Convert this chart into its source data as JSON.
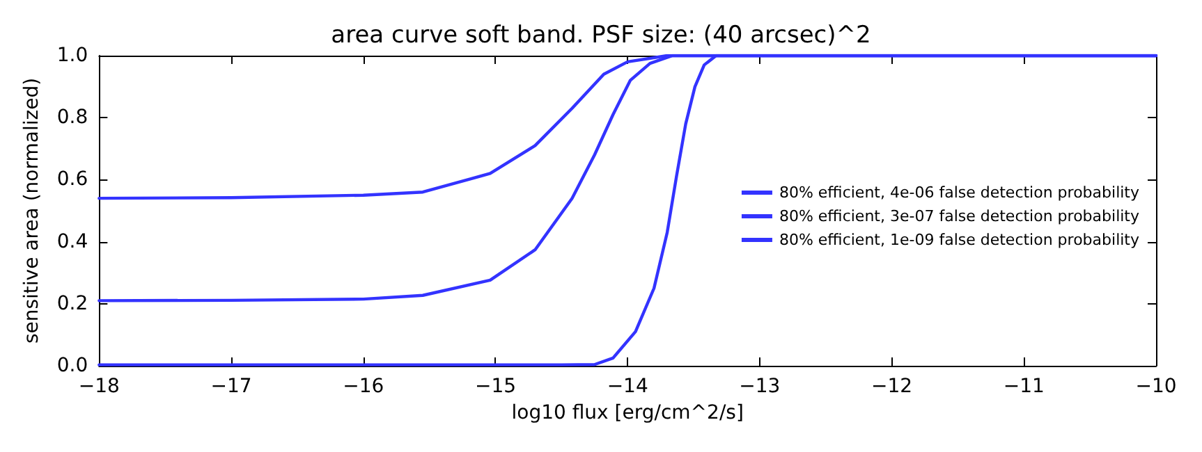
{
  "chart_data": {
    "type": "line",
    "title": "area curve soft band. PSF size: (40 arcsec)^2",
    "xlabel": "log10 flux [erg/cm^2/s]",
    "ylabel": "sensitive area (normalized)",
    "xlim": [
      -18,
      -10
    ],
    "xticks": [
      -18,
      -17,
      -16,
      -15,
      -14,
      -13,
      -12,
      -11,
      -10
    ],
    "ylim": [
      0,
      1
    ],
    "yticks": [
      {
        "value": 0,
        "label": "0.0"
      },
      {
        "value": 0.2,
        "label": "0.2"
      },
      {
        "value": 0.4,
        "label": "0.4"
      },
      {
        "value": 0.6,
        "label": "0.6"
      },
      {
        "value": 0.8,
        "label": "0.8"
      },
      {
        "value": 1,
        "label": "1.0"
      }
    ],
    "grid": false,
    "legend": "right",
    "marker": "none",
    "line_style": "solid",
    "series": [
      {
        "name": "80% efficient, 4e-06 false detection probability",
        "color": "#3333ff",
        "x": [
          -18,
          -17,
          -16,
          -15.55,
          -15.04,
          -14.7,
          -14.42,
          -14.18,
          -14.0,
          -13.7,
          -10
        ],
        "values": [
          0.54,
          0.542,
          0.55,
          0.56,
          0.62,
          0.71,
          0.83,
          0.94,
          0.98,
          1.0,
          1.0
        ]
      },
      {
        "name": "80% efficient, 3e-07 false detection probability",
        "color": "#3333ff",
        "x": [
          -18,
          -17,
          -16,
          -15.55,
          -15.04,
          -14.7,
          -14.42,
          -14.25,
          -14.11,
          -13.98,
          -13.83,
          -13.66,
          -10
        ],
        "values": [
          0.21,
          0.211,
          0.215,
          0.227,
          0.276,
          0.374,
          0.54,
          0.68,
          0.81,
          0.92,
          0.975,
          1.0,
          1.0
        ]
      },
      {
        "name": "80% efficient, 1e-09 false detection probability",
        "color": "#3333ff",
        "x": [
          -18,
          -14.5,
          -14.25,
          -14.11,
          -13.94,
          -13.8,
          -13.7,
          -13.63,
          -13.56,
          -13.49,
          -13.42,
          -13.33,
          -10
        ],
        "values": [
          0.003,
          0.003,
          0.004,
          0.025,
          0.11,
          0.25,
          0.43,
          0.61,
          0.78,
          0.9,
          0.97,
          1.0,
          1.0
        ]
      }
    ]
  }
}
